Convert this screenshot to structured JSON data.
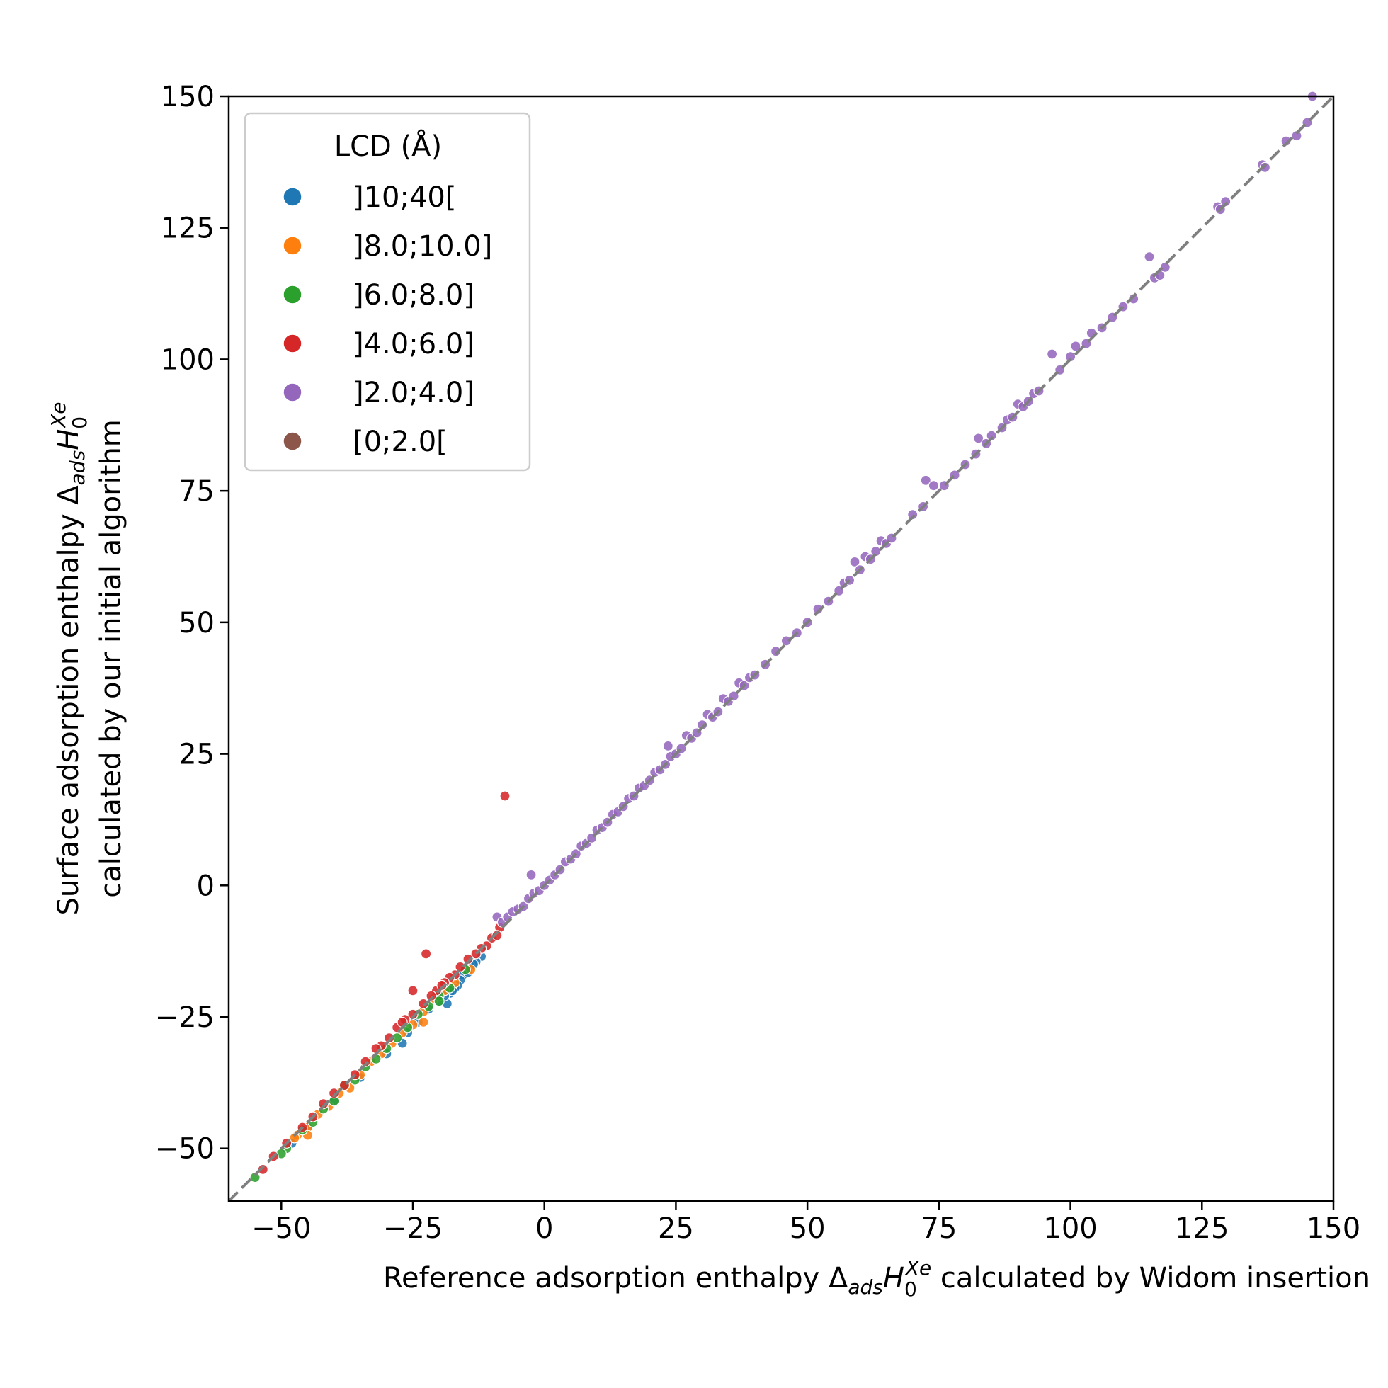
{
  "chart_data": {
    "type": "scatter",
    "xlabel": {
      "pre": "Reference adsorption enthalpy Δ",
      "sub": "ads",
      "H": "H",
      "script_sub": "0",
      "script_sup": "Xe",
      "post": " calculated by Widom insertion"
    },
    "ylabel": {
      "line1_pre": "Surface adsorption enthalpy Δ",
      "line1_sub": "ads",
      "line1_H": "H",
      "line1_script_sub": "0",
      "line1_script_sup": "Xe",
      "line2": "calculated by our initial algorithm"
    },
    "xlim": [
      -60,
      150
    ],
    "ylim": [
      -60,
      150
    ],
    "xticks": [
      -50,
      -25,
      0,
      25,
      50,
      75,
      100,
      125,
      150
    ],
    "yticks": [
      -50,
      -25,
      0,
      25,
      50,
      75,
      100,
      125,
      150
    ],
    "xtick_labels": [
      "−50",
      "−25",
      "0",
      "25",
      "50",
      "75",
      "100",
      "125",
      "150"
    ],
    "ytick_labels": [
      "−50",
      "−25",
      "0",
      "25",
      "50",
      "75",
      "100",
      "125",
      "150"
    ],
    "grid": false,
    "legend": {
      "title": "LCD (Å)",
      "placement": "top-left",
      "entries": [
        "]10;40[",
        "]8.0;10.0]",
        "]6.0;8.0]",
        "]4.0;6.0]",
        "]2.0;4.0]",
        "[0;2.0["
      ]
    },
    "reference_line": {
      "style": "dashed",
      "color": "#808080",
      "from": [
        -60,
        -60
      ],
      "to": [
        150,
        150
      ]
    },
    "series": [
      {
        "name": "]10;40[",
        "color": "#1f77b4",
        "points": [
          [
            -12,
            -13.5
          ],
          [
            -13,
            -14.5
          ],
          [
            -14,
            -15.5
          ],
          [
            -15,
            -16
          ],
          [
            -15.5,
            -17
          ],
          [
            -16,
            -18
          ],
          [
            -16.5,
            -19
          ],
          [
            -17,
            -19.5
          ],
          [
            -18,
            -20.5
          ],
          [
            -18.5,
            -22.5
          ],
          [
            -19,
            -21
          ],
          [
            -20,
            -22
          ],
          [
            -22,
            -23.5
          ],
          [
            -24,
            -26
          ],
          [
            -26,
            -28
          ],
          [
            -27,
            -30
          ],
          [
            -30,
            -32
          ],
          [
            -35,
            -36.5
          ],
          [
            -40,
            -41
          ],
          [
            -45,
            -46
          ],
          [
            -48,
            -49
          ],
          [
            -13.5,
            -15
          ],
          [
            -17.5,
            -20
          ],
          [
            -14.5,
            -16.5
          ]
        ]
      },
      {
        "name": "]8.0;10.0]",
        "color": "#ff7f0e",
        "points": [
          [
            -14,
            -16
          ],
          [
            -17,
            -18.5
          ],
          [
            -19,
            -20
          ],
          [
            -21,
            -21.5
          ],
          [
            -23,
            -24
          ],
          [
            -25,
            -26.5
          ],
          [
            -27,
            -28
          ],
          [
            -29,
            -30
          ],
          [
            -31,
            -32
          ],
          [
            -33,
            -33.5
          ],
          [
            -35,
            -36
          ],
          [
            -37,
            -38.5
          ],
          [
            -39,
            -39.5
          ],
          [
            -41,
            -42
          ],
          [
            -43,
            -43.5
          ],
          [
            -45,
            -46
          ],
          [
            -47,
            -47.5
          ],
          [
            -45,
            -47.5
          ],
          [
            -47.5,
            -48
          ],
          [
            -23,
            -26
          ]
        ]
      },
      {
        "name": "]6.0;8.0]",
        "color": "#2ca02c",
        "points": [
          [
            -15,
            -16
          ],
          [
            -18,
            -19.5
          ],
          [
            -20,
            -21
          ],
          [
            -22,
            -23
          ],
          [
            -24,
            -24.5
          ],
          [
            -26,
            -27
          ],
          [
            -28,
            -29
          ],
          [
            -30,
            -31
          ],
          [
            -32,
            -33
          ],
          [
            -34,
            -34.5
          ],
          [
            -36,
            -37
          ],
          [
            -38,
            -38
          ],
          [
            -40,
            -41
          ],
          [
            -42,
            -42.5
          ],
          [
            -44,
            -45
          ],
          [
            -46,
            -46.5
          ],
          [
            -49,
            -50
          ],
          [
            -55,
            -55.5
          ],
          [
            -50,
            -51
          ],
          [
            -20,
            -22
          ]
        ]
      },
      {
        "name": "]4.0;6.0]",
        "color": "#d62728",
        "points": [
          [
            -7.5,
            17
          ],
          [
            -22.5,
            -13
          ],
          [
            -25,
            -20
          ],
          [
            -10,
            -10
          ],
          [
            -11,
            -11.5
          ],
          [
            -12,
            -12
          ],
          [
            -13,
            -13
          ],
          [
            -14.5,
            -14
          ],
          [
            -16,
            -15.5
          ],
          [
            -17,
            -17
          ],
          [
            -18,
            -17.5
          ],
          [
            -19,
            -18.5
          ],
          [
            -20.5,
            -20
          ],
          [
            -21.5,
            -21
          ],
          [
            -23,
            -22.5
          ],
          [
            -25,
            -24.5
          ],
          [
            -26.5,
            -25.5
          ],
          [
            -28,
            -27
          ],
          [
            -29.5,
            -29
          ],
          [
            -31,
            -30.5
          ],
          [
            -32,
            -31
          ],
          [
            -34,
            -33.5
          ],
          [
            -36,
            -36
          ],
          [
            -38,
            -38
          ],
          [
            -40,
            -39.5
          ],
          [
            -42,
            -41.5
          ],
          [
            -44,
            -44
          ],
          [
            -46,
            -46
          ],
          [
            -49,
            -49
          ],
          [
            -51.5,
            -51.5
          ],
          [
            -53.5,
            -54
          ],
          [
            -8.5,
            -8
          ],
          [
            -9,
            -9.5
          ],
          [
            -19.5,
            -19
          ],
          [
            -27,
            -26
          ]
        ]
      },
      {
        "name": "]2.0;4.0]",
        "color": "#9467bd",
        "points": [
          [
            -9,
            -6
          ],
          [
            -8,
            -7
          ],
          [
            -7,
            -6
          ],
          [
            -6,
            -5
          ],
          [
            -5,
            -4.5
          ],
          [
            -4,
            -4
          ],
          [
            -3,
            -2.5
          ],
          [
            -2.5,
            2
          ],
          [
            -2,
            -1.5
          ],
          [
            -1,
            -1
          ],
          [
            0,
            0
          ],
          [
            1,
            1
          ],
          [
            2,
            2
          ],
          [
            3,
            3
          ],
          [
            4,
            4.5
          ],
          [
            5,
            5
          ],
          [
            6,
            6
          ],
          [
            7,
            7.5
          ],
          [
            8,
            8
          ],
          [
            9,
            9
          ],
          [
            10,
            10.5
          ],
          [
            11,
            11
          ],
          [
            12,
            12
          ],
          [
            13,
            13.5
          ],
          [
            14,
            14
          ],
          [
            15,
            15
          ],
          [
            16,
            16.5
          ],
          [
            17,
            17
          ],
          [
            18,
            18.5
          ],
          [
            19,
            19
          ],
          [
            20,
            20
          ],
          [
            21,
            21.5
          ],
          [
            22,
            22
          ],
          [
            23,
            23
          ],
          [
            24,
            24.5
          ],
          [
            25,
            25
          ],
          [
            23.5,
            26.5
          ],
          [
            26,
            26
          ],
          [
            27,
            28.5
          ],
          [
            28,
            28
          ],
          [
            29,
            29
          ],
          [
            30,
            30.5
          ],
          [
            31,
            32.5
          ],
          [
            32,
            32
          ],
          [
            33,
            33
          ],
          [
            34,
            35.5
          ],
          [
            35,
            35
          ],
          [
            36,
            36
          ],
          [
            37,
            38.5
          ],
          [
            38,
            38
          ],
          [
            39,
            39.5
          ],
          [
            40,
            40
          ],
          [
            42,
            42
          ],
          [
            44,
            44.5
          ],
          [
            46,
            46.5
          ],
          [
            48,
            48
          ],
          [
            50,
            50
          ],
          [
            52,
            52.5
          ],
          [
            54,
            54
          ],
          [
            56,
            56
          ],
          [
            57,
            57.5
          ],
          [
            58,
            58
          ],
          [
            59,
            61.5
          ],
          [
            60,
            60
          ],
          [
            61,
            62.5
          ],
          [
            62,
            62
          ],
          [
            63,
            63.5
          ],
          [
            64,
            65.5
          ],
          [
            65,
            65
          ],
          [
            66,
            66
          ],
          [
            70,
            70.5
          ],
          [
            72,
            72
          ],
          [
            72.5,
            77
          ],
          [
            74,
            76
          ],
          [
            76,
            76
          ],
          [
            78,
            78
          ],
          [
            80,
            80
          ],
          [
            82,
            82
          ],
          [
            82.5,
            85
          ],
          [
            84,
            84
          ],
          [
            85,
            85.5
          ],
          [
            87,
            87
          ],
          [
            88,
            88.5
          ],
          [
            89,
            89
          ],
          [
            90,
            91.5
          ],
          [
            91,
            91
          ],
          [
            92,
            92
          ],
          [
            93,
            93.5
          ],
          [
            94,
            94
          ],
          [
            96.5,
            101
          ],
          [
            98,
            98
          ],
          [
            100,
            100.5
          ],
          [
            101,
            102.5
          ],
          [
            103,
            103
          ],
          [
            104,
            105
          ],
          [
            106,
            106
          ],
          [
            108,
            108
          ],
          [
            110,
            110
          ],
          [
            112,
            111.5
          ],
          [
            115,
            119.5
          ],
          [
            116,
            115.5
          ],
          [
            117,
            116
          ],
          [
            118,
            117.5
          ],
          [
            128,
            129
          ],
          [
            128.5,
            128.5
          ],
          [
            129.5,
            130
          ],
          [
            136.5,
            137
          ],
          [
            137,
            136.5
          ],
          [
            141,
            141.5
          ],
          [
            143,
            142.5
          ],
          [
            145,
            145
          ],
          [
            146,
            150
          ]
        ]
      },
      {
        "name": "[0;2.0[",
        "color": "#8c564b",
        "points": []
      }
    ]
  }
}
